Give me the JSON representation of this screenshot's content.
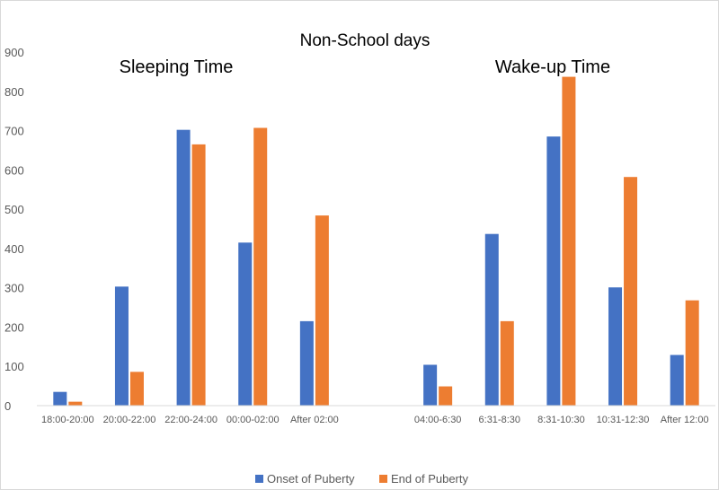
{
  "chart_data": {
    "type": "bar",
    "title": "Non-School days",
    "group_titles": [
      "Sleeping Time",
      "Wake-up Time"
    ],
    "categories": [
      "18:00-20:00",
      "20:00-22:00",
      "22:00-24:00",
      "00:00-02:00",
      "After 02:00",
      "",
      "04:00-6:30",
      "6:31-8:30",
      "8:31-10:30",
      "10:31-12:30",
      "After 12:00"
    ],
    "series": [
      {
        "name": "Onset of Puberty",
        "color": "#4472C4",
        "values": [
          35,
          303,
          702,
          415,
          215,
          null,
          104,
          437,
          685,
          301,
          129
        ]
      },
      {
        "name": "End of Puberty",
        "color": "#ED7D31",
        "values": [
          10,
          86,
          665,
          707,
          484,
          null,
          49,
          215,
          837,
          582,
          268
        ]
      }
    ],
    "ylim": [
      0,
      900
    ],
    "yticks": [
      0,
      100,
      200,
      300,
      400,
      500,
      600,
      700,
      800,
      900
    ],
    "grid": false,
    "legend": "bottom"
  }
}
